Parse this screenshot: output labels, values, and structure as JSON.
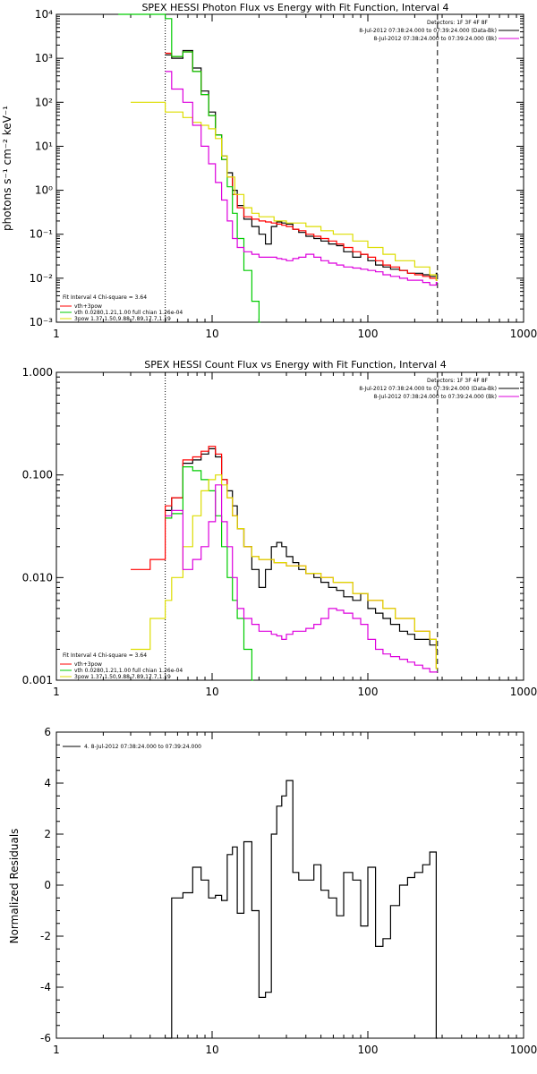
{
  "chart_data": [
    {
      "type": "line",
      "title": "SPEX HESSI Photon Flux vs Energy with Fit Function, Interval 4",
      "ylabel": "photons s⁻¹ cm⁻² keV⁻¹",
      "xlabel": "",
      "xscale": "log",
      "yscale": "log",
      "xlim": [
        1,
        1000
      ],
      "ylim": [
        0.001,
        10000
      ],
      "x_tick_labels": [
        "1",
        "10",
        "100",
        "1000"
      ],
      "y_tick_labels": [
        "10⁻³",
        "10⁻²",
        "10⁻¹",
        "10⁰",
        "10¹",
        "10²",
        "10³",
        "10⁴"
      ],
      "vlines": [
        {
          "x": 5,
          "style": "dotted"
        },
        {
          "x": 280,
          "style": "dashed"
        }
      ],
      "info_text": [
        "Detectors: 1F 3F 4F 8F",
        "8-Jul-2012 07:38:24.000 to 07:39:24.000 (Data-Bk)",
        "8-Jul-2012 07:38:24.000 to 07:39:24.000 (Bk)"
      ],
      "legend": {
        "placement": "bottom-left",
        "header": "Fit Interval 4   Chi-square = 3.64",
        "entries": [
          {
            "label": "vth+3pow",
            "color": "#ff0000"
          },
          {
            "label": "vth 0.0280,1.21,1.00  full chian 1.26e-04",
            "color": "#00cc00"
          },
          {
            "label": "3pow 1.37,1.50,9.88,7.89,17.7,1.19",
            "color": "#dddd00"
          }
        ]
      },
      "series": [
        {
          "key": "data",
          "color": "#000000",
          "x": [
            5,
            5.5,
            6.5,
            7.5,
            8.5,
            9.5,
            10.5,
            11.5,
            12.5,
            13.5,
            14.5,
            16,
            18,
            20,
            22,
            24,
            26,
            28,
            30,
            33,
            36,
            40,
            45,
            50,
            56,
            63,
            70,
            80,
            90,
            100,
            112,
            125,
            140,
            160,
            180,
            200,
            225,
            250,
            275
          ],
          "y": [
            1200,
            1000,
            1500,
            600,
            180,
            60,
            18,
            6,
            2.5,
            1.0,
            0.45,
            0.22,
            0.15,
            0.1,
            0.06,
            0.15,
            0.19,
            0.18,
            0.17,
            0.13,
            0.11,
            0.09,
            0.08,
            0.07,
            0.06,
            0.055,
            0.04,
            0.03,
            0.035,
            0.025,
            0.02,
            0.018,
            0.016,
            0.015,
            0.013,
            0.013,
            0.012,
            0.011,
            0.013
          ]
        },
        {
          "key": "vth+3pow",
          "color": "#ff0000",
          "x": [
            5,
            5.5,
            6.5,
            7.5,
            8.5,
            9.5,
            10.5,
            11.5,
            12.5,
            13.5,
            14.5,
            16,
            18,
            20,
            22,
            24,
            26,
            28,
            30,
            33,
            36,
            40,
            45,
            50,
            56,
            63,
            70,
            80,
            90,
            100,
            112,
            125,
            140,
            160,
            180,
            200,
            225,
            250,
            275
          ],
          "y": [
            1300,
            1100,
            1400,
            500,
            150,
            50,
            18,
            5,
            2.0,
            0.8,
            0.4,
            0.25,
            0.22,
            0.2,
            0.19,
            0.18,
            0.17,
            0.16,
            0.15,
            0.13,
            0.12,
            0.1,
            0.09,
            0.08,
            0.07,
            0.06,
            0.05,
            0.04,
            0.035,
            0.03,
            0.025,
            0.02,
            0.018,
            0.015,
            0.013,
            0.012,
            0.011,
            0.01,
            0.009
          ]
        },
        {
          "key": "vth",
          "color": "#00cc00",
          "x": [
            2.5,
            3,
            4,
            5,
            5.5,
            6.5,
            7.5,
            8.5,
            9.5,
            10.5,
            11.5,
            12.5,
            13.5,
            14.5,
            16,
            18,
            20
          ],
          "y": [
            10000,
            10000,
            10000,
            8000,
            1100,
            1400,
            500,
            150,
            50,
            18,
            5,
            1.2,
            0.3,
            0.08,
            0.015,
            0.003,
            0.001
          ]
        },
        {
          "key": "3pow",
          "color": "#dddd00",
          "x": [
            3,
            4,
            5,
            5.5,
            6.5,
            7.5,
            8.5,
            9.5,
            10.5,
            11.5,
            12.5,
            14,
            16,
            18,
            20,
            25,
            30,
            40,
            50,
            60,
            80,
            100,
            125,
            150,
            200,
            250,
            275
          ],
          "y": [
            100,
            100,
            60,
            60,
            45,
            35,
            30,
            25,
            15,
            6,
            2.0,
            0.8,
            0.4,
            0.3,
            0.25,
            0.2,
            0.18,
            0.15,
            0.12,
            0.1,
            0.07,
            0.05,
            0.035,
            0.025,
            0.018,
            0.012,
            0.009
          ]
        },
        {
          "key": "background",
          "color": "#dd00dd",
          "x": [
            5,
            5.5,
            6.5,
            7.5,
            8.5,
            9.5,
            10.5,
            11.5,
            12.5,
            13.5,
            14.5,
            16,
            18,
            20,
            22,
            24,
            26,
            28,
            30,
            33,
            36,
            40,
            45,
            50,
            56,
            63,
            70,
            80,
            90,
            100,
            112,
            125,
            140,
            160,
            180,
            200,
            225,
            250,
            275
          ],
          "y": [
            500,
            200,
            100,
            30,
            10,
            4,
            1.5,
            0.6,
            0.2,
            0.08,
            0.05,
            0.04,
            0.035,
            0.03,
            0.03,
            0.03,
            0.028,
            0.027,
            0.025,
            0.028,
            0.03,
            0.035,
            0.03,
            0.025,
            0.022,
            0.02,
            0.018,
            0.017,
            0.016,
            0.015,
            0.014,
            0.012,
            0.011,
            0.01,
            0.009,
            0.009,
            0.008,
            0.007,
            0.008
          ]
        }
      ]
    },
    {
      "type": "line",
      "title": "SPEX HESSI Count Flux vs Energy with Fit Function, Interval 4",
      "ylabel": "",
      "xlabel": "",
      "xscale": "log",
      "yscale": "log",
      "xlim": [
        1,
        1000
      ],
      "ylim": [
        0.001,
        1.0
      ],
      "x_tick_labels": [
        "1",
        "10",
        "100",
        "1000"
      ],
      "y_tick_labels": [
        "0.001",
        "0.010",
        "0.100",
        "1.000"
      ],
      "vlines": [
        {
          "x": 5,
          "style": "dotted"
        },
        {
          "x": 280,
          "style": "dashed"
        }
      ],
      "info_text": [
        "Detectors: 1F 3F 4F 8F",
        "8-Jul-2012 07:38:24.000 to 07:39:24.000 (Data-Bk)",
        "8-Jul-2012 07:38:24.000 to 07:39:24.000 (Bk)"
      ],
      "legend": {
        "placement": "bottom-left",
        "header": "Fit Interval 4   Chi-square = 3.64",
        "entries": [
          {
            "label": "vth+3pow",
            "color": "#ff0000"
          },
          {
            "label": "vth 0.0280,1.21,1.00  full chian 1.26e-04",
            "color": "#00cc00"
          },
          {
            "label": "3pow 1.37,1.50,9.88,7.89,17.7,1.19",
            "color": "#dddd00"
          }
        ]
      },
      "series": [
        {
          "key": "data",
          "color": "#000000",
          "x": [
            5,
            5.5,
            6.5,
            7.5,
            8.5,
            9.5,
            10.5,
            11.5,
            12.5,
            13.5,
            14.5,
            16,
            18,
            20,
            22,
            24,
            26,
            28,
            30,
            33,
            36,
            40,
            45,
            50,
            56,
            63,
            70,
            80,
            90,
            100,
            112,
            125,
            140,
            160,
            180,
            200,
            225,
            250,
            275
          ],
          "y": [
            0.045,
            0.06,
            0.13,
            0.14,
            0.16,
            0.18,
            0.15,
            0.09,
            0.07,
            0.05,
            0.03,
            0.02,
            0.012,
            0.008,
            0.012,
            0.02,
            0.022,
            0.02,
            0.016,
            0.014,
            0.012,
            0.011,
            0.01,
            0.009,
            0.008,
            0.0075,
            0.0065,
            0.006,
            0.007,
            0.005,
            0.0045,
            0.004,
            0.0035,
            0.003,
            0.0028,
            0.0025,
            0.0025,
            0.0022,
            0.002
          ]
        },
        {
          "key": "vth+3pow",
          "color": "#ff0000",
          "x": [
            3,
            4,
            5,
            5.5,
            6.5,
            7.5,
            8.5,
            9.5,
            10.5,
            11.5,
            12.5,
            13.5,
            14.5,
            16,
            18,
            20,
            25,
            30,
            40,
            50,
            60,
            80,
            100,
            125,
            150,
            200,
            250,
            275
          ],
          "y": [
            0.012,
            0.015,
            0.05,
            0.06,
            0.14,
            0.15,
            0.17,
            0.19,
            0.16,
            0.09,
            0.06,
            0.04,
            0.03,
            0.02,
            0.016,
            0.015,
            0.014,
            0.013,
            0.011,
            0.01,
            0.009,
            0.007,
            0.006,
            0.005,
            0.004,
            0.003,
            0.0025,
            0.0013
          ]
        },
        {
          "key": "vth",
          "color": "#00cc00",
          "x": [
            5,
            5.5,
            6.5,
            7.5,
            8.5,
            9.5,
            10.5,
            11.5,
            12.5,
            13.5,
            14.5,
            16,
            18
          ],
          "y": [
            0.038,
            0.042,
            0.12,
            0.11,
            0.09,
            0.07,
            0.04,
            0.02,
            0.01,
            0.006,
            0.004,
            0.002,
            0.001
          ]
        },
        {
          "key": "3pow",
          "color": "#dddd00",
          "x": [
            3,
            4,
            5,
            5.5,
            6.5,
            7.5,
            8.5,
            9.5,
            10.5,
            11.5,
            12.5,
            13.5,
            14.5,
            16,
            18,
            20,
            25,
            30,
            40,
            50,
            60,
            80,
            100,
            125,
            150,
            200,
            250,
            275
          ],
          "y": [
            0.002,
            0.004,
            0.006,
            0.01,
            0.02,
            0.04,
            0.07,
            0.09,
            0.1,
            0.08,
            0.06,
            0.04,
            0.03,
            0.02,
            0.016,
            0.015,
            0.014,
            0.013,
            0.011,
            0.01,
            0.009,
            0.007,
            0.006,
            0.005,
            0.004,
            0.003,
            0.0025,
            0.0013
          ]
        },
        {
          "key": "background",
          "color": "#dd00dd",
          "x": [
            5,
            5.5,
            6.5,
            7.5,
            8.5,
            9.5,
            10.5,
            11.5,
            12.5,
            13.5,
            14.5,
            16,
            18,
            20,
            22,
            24,
            26,
            28,
            30,
            33,
            36,
            40,
            45,
            50,
            56,
            63,
            70,
            80,
            90,
            100,
            112,
            125,
            140,
            160,
            180,
            200,
            225,
            250,
            275
          ],
          "y": [
            0.04,
            0.045,
            0.012,
            0.015,
            0.02,
            0.035,
            0.08,
            0.035,
            0.02,
            0.01,
            0.005,
            0.004,
            0.0035,
            0.003,
            0.003,
            0.0028,
            0.0027,
            0.0025,
            0.0028,
            0.003,
            0.003,
            0.0032,
            0.0035,
            0.004,
            0.005,
            0.0048,
            0.0045,
            0.004,
            0.0035,
            0.0025,
            0.002,
            0.0018,
            0.0017,
            0.0016,
            0.0015,
            0.0014,
            0.0013,
            0.0012,
            0.0012
          ]
        }
      ]
    },
    {
      "type": "line",
      "title": "",
      "ylabel": "Normalized Residuals",
      "xlabel": "",
      "xscale": "log",
      "yscale": "linear",
      "xlim": [
        1,
        1000
      ],
      "ylim": [
        -6,
        6
      ],
      "x_tick_labels": [
        "1",
        "10",
        "100",
        "1000"
      ],
      "y_tick_labels": [
        "-6",
        "-4",
        "-2",
        "0",
        "2",
        "4",
        "6"
      ],
      "legend": {
        "placement": "top-left",
        "entries": [
          {
            "label": "4. 8-Jul-2012 07:38:24.000 to 07:39:24.000",
            "color": "#000000"
          }
        ]
      },
      "series": [
        {
          "key": "residuals",
          "color": "#000000",
          "x": [
            5,
            5.5,
            6.5,
            7.5,
            8.5,
            9.5,
            10.5,
            11.5,
            12.5,
            13.5,
            14.5,
            16,
            18,
            20,
            22,
            24,
            26,
            28,
            30,
            33,
            36,
            40,
            45,
            50,
            56,
            63,
            70,
            80,
            90,
            100,
            112,
            125,
            140,
            160,
            180,
            200,
            225,
            250,
            275
          ],
          "y": [
            -6,
            -0.5,
            -0.3,
            0.7,
            0.2,
            -0.5,
            -0.4,
            -0.6,
            1.2,
            1.5,
            -1.1,
            1.7,
            -1.0,
            -4.4,
            -4.2,
            2.0,
            3.1,
            3.5,
            4.1,
            0.5,
            0.2,
            0.2,
            0.8,
            -0.2,
            -0.5,
            -1.2,
            0.5,
            0.2,
            -1.6,
            0.7,
            -2.4,
            -2.1,
            -0.8,
            0.0,
            0.3,
            0.5,
            0.8,
            1.3,
            -6
          ]
        }
      ]
    }
  ]
}
